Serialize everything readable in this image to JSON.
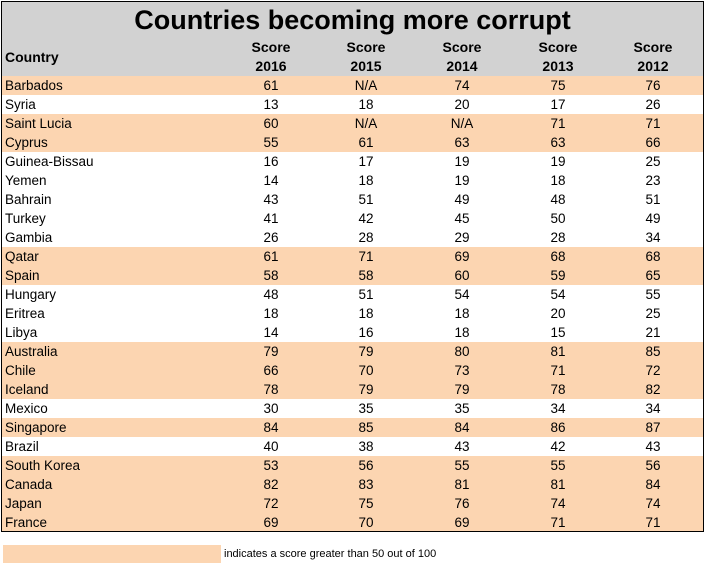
{
  "title": "Countries becoming more corrupt",
  "legend_note": "indicates a score greater than 50 out of 100",
  "highlight_color": "#fcd5b1",
  "header_color": "#d2d2d2",
  "chart_data": {
    "type": "table",
    "title": "Countries becoming more corrupt",
    "columns": [
      {
        "top": "Country",
        "bottom": ""
      },
      {
        "top": "Score",
        "bottom": "2016"
      },
      {
        "top": "Score",
        "bottom": "2015"
      },
      {
        "top": "Score",
        "bottom": "2014"
      },
      {
        "top": "Score",
        "bottom": "2013"
      },
      {
        "top": "Score",
        "bottom": "2012"
      }
    ],
    "rows": [
      {
        "country": "Barbados",
        "values": [
          "61",
          "N/A",
          "74",
          "75",
          "76"
        ],
        "highlighted": true
      },
      {
        "country": "Syria",
        "values": [
          "13",
          "18",
          "20",
          "17",
          "26"
        ],
        "highlighted": false
      },
      {
        "country": "Saint Lucia",
        "values": [
          "60",
          "N/A",
          "N/A",
          "71",
          "71"
        ],
        "highlighted": true
      },
      {
        "country": "Cyprus",
        "values": [
          "55",
          "61",
          "63",
          "63",
          "66"
        ],
        "highlighted": true
      },
      {
        "country": "Guinea-Bissau",
        "values": [
          "16",
          "17",
          "19",
          "19",
          "25"
        ],
        "highlighted": false
      },
      {
        "country": "Yemen",
        "values": [
          "14",
          "18",
          "19",
          "18",
          "23"
        ],
        "highlighted": false
      },
      {
        "country": "Bahrain",
        "values": [
          "43",
          "51",
          "49",
          "48",
          "51"
        ],
        "highlighted": false
      },
      {
        "country": "Turkey",
        "values": [
          "41",
          "42",
          "45",
          "50",
          "49"
        ],
        "highlighted": false
      },
      {
        "country": "Gambia",
        "values": [
          "26",
          "28",
          "29",
          "28",
          "34"
        ],
        "highlighted": false
      },
      {
        "country": "Qatar",
        "values": [
          "61",
          "71",
          "69",
          "68",
          "68"
        ],
        "highlighted": true
      },
      {
        "country": "Spain",
        "values": [
          "58",
          "58",
          "60",
          "59",
          "65"
        ],
        "highlighted": true
      },
      {
        "country": "Hungary",
        "values": [
          "48",
          "51",
          "54",
          "54",
          "55"
        ],
        "highlighted": false
      },
      {
        "country": "Eritrea",
        "values": [
          "18",
          "18",
          "18",
          "20",
          "25"
        ],
        "highlighted": false
      },
      {
        "country": "Libya",
        "values": [
          "14",
          "16",
          "18",
          "15",
          "21"
        ],
        "highlighted": false
      },
      {
        "country": "Australia",
        "values": [
          "79",
          "79",
          "80",
          "81",
          "85"
        ],
        "highlighted": true
      },
      {
        "country": "Chile",
        "values": [
          "66",
          "70",
          "73",
          "71",
          "72"
        ],
        "highlighted": true
      },
      {
        "country": "Iceland",
        "values": [
          "78",
          "79",
          "79",
          "78",
          "82"
        ],
        "highlighted": true
      },
      {
        "country": "Mexico",
        "values": [
          "30",
          "35",
          "35",
          "34",
          "34"
        ],
        "highlighted": false
      },
      {
        "country": "Singapore",
        "values": [
          "84",
          "85",
          "84",
          "86",
          "87"
        ],
        "highlighted": true
      },
      {
        "country": "Brazil",
        "values": [
          "40",
          "38",
          "43",
          "42",
          "43"
        ],
        "highlighted": false
      },
      {
        "country": "South Korea",
        "values": [
          "53",
          "56",
          "55",
          "55",
          "56"
        ],
        "highlighted": true
      },
      {
        "country": "Canada",
        "values": [
          "82",
          "83",
          "81",
          "81",
          "84"
        ],
        "highlighted": true
      },
      {
        "country": "Japan",
        "values": [
          "72",
          "75",
          "76",
          "74",
          "74"
        ],
        "highlighted": true
      },
      {
        "country": "France",
        "values": [
          "69",
          "70",
          "69",
          "71",
          "71"
        ],
        "highlighted": true
      }
    ]
  }
}
